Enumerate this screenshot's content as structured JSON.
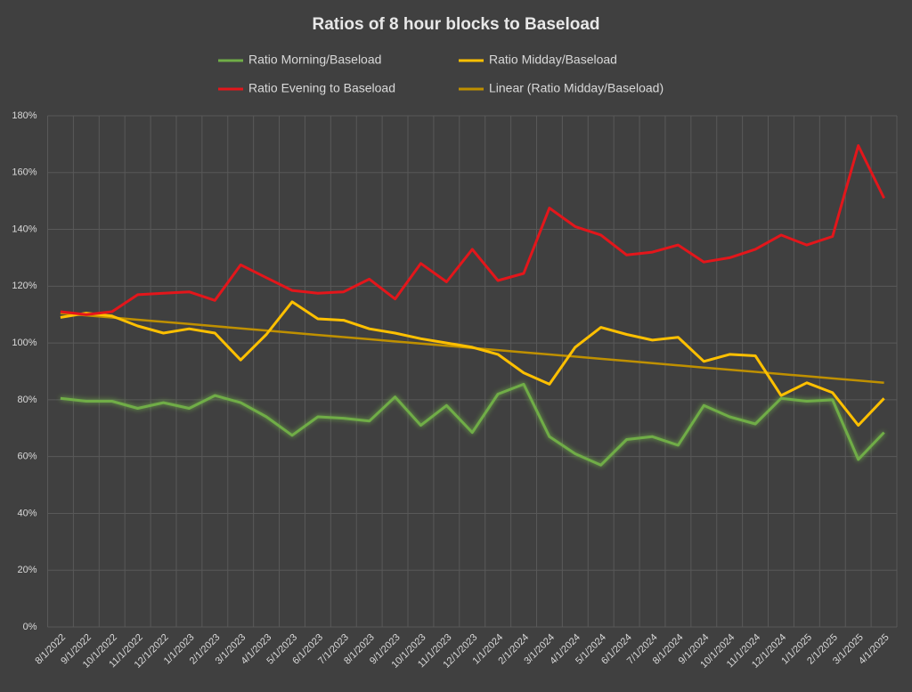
{
  "chart_data": {
    "type": "line",
    "title": "Ratios of 8 hour blocks to Baseload",
    "categories": [
      "8/1/2022",
      "9/1/2022",
      "10/1/2022",
      "11/1/2022",
      "12/1/2022",
      "1/1/2023",
      "2/1/2023",
      "3/1/2023",
      "4/1/2023",
      "5/1/2023",
      "6/1/2023",
      "7/1/2023",
      "8/1/2023",
      "9/1/2023",
      "10/1/2023",
      "11/1/2023",
      "12/1/2023",
      "1/1/2024",
      "2/1/2024",
      "3/1/2024",
      "4/1/2024",
      "5/1/2024",
      "6/1/2024",
      "7/1/2024",
      "8/1/2024",
      "9/1/2024",
      "10/1/2024",
      "11/1/2024",
      "12/1/2024",
      "1/1/2025",
      "2/1/2025",
      "3/1/2025",
      "4/1/2025"
    ],
    "series": [
      {
        "name": "Ratio Morning/Baseload",
        "color": "#70ad47",
        "values": [
          80.5,
          79.5,
          79.5,
          77,
          79,
          77,
          81.5,
          79,
          74,
          67.5,
          74,
          73.5,
          72.5,
          81,
          71,
          78,
          68.5,
          82,
          85.5,
          67,
          61,
          57,
          66,
          67,
          64,
          78,
          74,
          71.5,
          80.5,
          79.5,
          80,
          59,
          68.5
        ]
      },
      {
        "name": "Ratio Midday/Baseload",
        "color": "#ffc000",
        "values": [
          109,
          110.5,
          109.5,
          106,
          103.5,
          105,
          103.5,
          94,
          103,
          114.5,
          108.5,
          108,
          105,
          103.5,
          101.5,
          100,
          98.5,
          96,
          89.5,
          85.5,
          98.5,
          105.5,
          103,
          101,
          102,
          93.5,
          96,
          95.5,
          81.5,
          86,
          82.5,
          71,
          80.5
        ]
      },
      {
        "name": "Ratio Evening to Baseload",
        "color": "#e3161b",
        "values": [
          111,
          110,
          111,
          117,
          117.5,
          118,
          115,
          127.5,
          123,
          118.5,
          117.5,
          118,
          122.5,
          115.5,
          128,
          121.5,
          133,
          122,
          124.5,
          147.5,
          141,
          138,
          131,
          132,
          134.5,
          128.5,
          130,
          133,
          138,
          134.5,
          137.5,
          169.5,
          151
        ]
      },
      {
        "name": "Linear (Ratio Midday/Baseload)",
        "color": "#bf9000",
        "values": [
          110.5,
          109.73,
          108.97,
          108.2,
          107.44,
          106.67,
          105.91,
          105.14,
          104.38,
          103.61,
          102.84,
          102.08,
          101.31,
          100.55,
          99.78,
          99.02,
          98.25,
          97.48,
          96.72,
          95.95,
          95.19,
          94.42,
          93.66,
          92.89,
          92.13,
          91.36,
          90.59,
          89.83,
          89.06,
          88.3,
          87.53,
          86.77,
          86.0
        ]
      }
    ],
    "ylim": [
      0,
      180
    ],
    "yticks": [
      {
        "value": 0,
        "label": "0%"
      },
      {
        "value": 20,
        "label": "20%"
      },
      {
        "value": 40,
        "label": "40%"
      },
      {
        "value": 60,
        "label": "60%"
      },
      {
        "value": 80,
        "label": "80%"
      },
      {
        "value": 100,
        "label": "100%"
      },
      {
        "value": 120,
        "label": "120%"
      },
      {
        "value": 140,
        "label": "140%"
      },
      {
        "value": 160,
        "label": "160%"
      },
      {
        "value": 180,
        "label": "180%"
      }
    ],
    "grid": true,
    "legend": "top"
  }
}
